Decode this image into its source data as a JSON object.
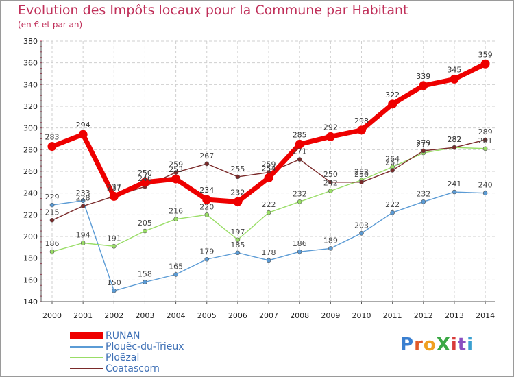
{
  "chart_data": {
    "type": "line",
    "title": "Evolution des Impôts locaux pour la Commune par Habitant",
    "subtitle": "(en € et par an)",
    "xlabel": "",
    "ylabel": "",
    "ylim": [
      140,
      380
    ],
    "yticks": [
      140,
      160,
      180,
      200,
      220,
      240,
      260,
      280,
      300,
      320,
      340,
      360,
      380
    ],
    "categories": [
      "2000",
      "2001",
      "2002",
      "2003",
      "2004",
      "2005",
      "2006",
      "2007",
      "2008",
      "2009",
      "2010",
      "2011",
      "2012",
      "2013",
      "2014"
    ],
    "grid": true,
    "legend_position": "bottom-left",
    "series": [
      {
        "name": "RUNAN",
        "color": "#ee0000",
        "values": [
          283,
          294,
          237,
          250,
          253,
          234,
          232,
          254,
          285,
          292,
          298,
          322,
          339,
          345,
          359
        ]
      },
      {
        "name": "Plouëc-du-Trieux",
        "color": "#5b9bd5",
        "values": [
          229,
          233,
          150,
          158,
          165,
          179,
          185,
          178,
          186,
          189,
          203,
          222,
          232,
          241,
          240
        ]
      },
      {
        "name": "Ploëzal",
        "color": "#99dd66",
        "values": [
          186,
          194,
          191,
          205,
          216,
          220,
          197,
          222,
          232,
          242,
          252,
          264,
          277,
          282,
          281
        ]
      },
      {
        "name": "Coatascorn",
        "color": "#7a2a2a",
        "values": [
          215,
          228,
          237,
          246,
          259,
          267,
          255,
          259,
          271,
          250,
          250,
          261,
          279,
          282,
          289
        ]
      }
    ]
  },
  "logo": {
    "text": "ProXiti"
  }
}
